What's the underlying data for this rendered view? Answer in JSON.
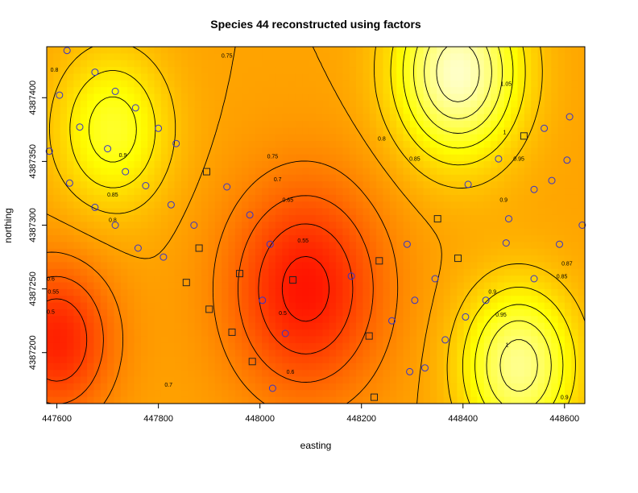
{
  "chart_data": {
    "type": "heatmap",
    "title": "Species 44 reconstructed using factors",
    "xlabel": "easting",
    "ylabel": "northing",
    "xlim": [
      447580,
      448640
    ],
    "ylim": [
      4387160,
      4387440
    ],
    "x_ticks": [
      447600,
      447800,
      448000,
      448200,
      448400,
      448600
    ],
    "y_ticks": [
      4387200,
      4387250,
      4387300,
      4387350,
      4387400
    ],
    "x_tick_labels": [
      "447600",
      "447800",
      "448000",
      "448200",
      "448400",
      "448600"
    ],
    "y_tick_labels": [
      "4387200",
      "4387250",
      "4387300",
      "4387350",
      "4387400"
    ],
    "color_scale": {
      "low": "#ff0000",
      "mid": "#ff9900",
      "high": "#ffffcc",
      "min": 0.5,
      "max": 1.1
    },
    "grid": false,
    "field_centers": [
      {
        "x": 448090,
        "y": 4387250,
        "z": 0.53,
        "spread": 150
      },
      {
        "x": 447600,
        "y": 4387210,
        "z": 0.55,
        "spread": 110
      },
      {
        "x": 447710,
        "y": 4387375,
        "z": 0.93,
        "spread": 110
      },
      {
        "x": 448390,
        "y": 4387420,
        "z": 1.09,
        "spread": 120
      },
      {
        "x": 448510,
        "y": 4387190,
        "z": 1.03,
        "spread": 110
      }
    ],
    "field_base": 0.75,
    "contour_levels": [
      0.55,
      0.6,
      0.65,
      0.7,
      0.75,
      0.8,
      0.85,
      0.9,
      0.95,
      1,
      1.05
    ],
    "contour_labels": [
      {
        "text": "0.75",
        "x": 447935,
        "y": 4387433
      },
      {
        "text": "0.8",
        "x": 447595,
        "y": 4387422
      },
      {
        "text": "1.05",
        "x": 448485,
        "y": 4387411
      },
      {
        "text": "0.8",
        "x": 448240,
        "y": 4387368
      },
      {
        "text": "1",
        "x": 448482,
        "y": 4387373
      },
      {
        "text": "0.75",
        "x": 448025,
        "y": 4387354
      },
      {
        "text": "0.85",
        "x": 448305,
        "y": 4387352
      },
      {
        "text": "0.9",
        "x": 447730,
        "y": 4387355
      },
      {
        "text": "0.95",
        "x": 448510,
        "y": 4387352
      },
      {
        "text": "0.7",
        "x": 448035,
        "y": 4387336
      },
      {
        "text": "0.85",
        "x": 447710,
        "y": 4387324
      },
      {
        "text": "0.65",
        "x": 448055,
        "y": 4387320
      },
      {
        "text": "0.9",
        "x": 448480,
        "y": 4387320
      },
      {
        "text": "0.8",
        "x": 447710,
        "y": 4387304
      },
      {
        "text": "0.55",
        "x": 448085,
        "y": 4387288
      },
      {
        "text": "0.87",
        "x": 448605,
        "y": 4387270
      },
      {
        "text": "0.6",
        "x": 447588,
        "y": 4387258
      },
      {
        "text": "0.85",
        "x": 448595,
        "y": 4387260
      },
      {
        "text": "0.55",
        "x": 447593,
        "y": 4387248
      },
      {
        "text": "0.9",
        "x": 448458,
        "y": 4387248
      },
      {
        "text": "0.5",
        "x": 448045,
        "y": 4387231
      },
      {
        "text": "0.95",
        "x": 448475,
        "y": 4387230
      },
      {
        "text": "0.5",
        "x": 447588,
        "y": 4387232
      },
      {
        "text": "1",
        "x": 448487,
        "y": 4387206
      },
      {
        "text": "0.6",
        "x": 448060,
        "y": 4387185
      },
      {
        "text": "0.7",
        "x": 447820,
        "y": 4387175
      },
      {
        "text": "0.9",
        "x": 448600,
        "y": 4387165
      }
    ],
    "series": [
      {
        "name": "",
        "marker": "circle",
        "color": "#3333cc",
        "points": [
          [
            447620,
            4387437
          ],
          [
            447605,
            4387402
          ],
          [
            447675,
            4387420
          ],
          [
            447715,
            4387405
          ],
          [
            447755,
            4387392
          ],
          [
            447645,
            4387377
          ],
          [
            447800,
            4387376
          ],
          [
            447700,
            4387360
          ],
          [
            447835,
            4387364
          ],
          [
            447585,
            4387358
          ],
          [
            447735,
            4387342
          ],
          [
            447625,
            4387333
          ],
          [
            447775,
            4387331
          ],
          [
            447675,
            4387314
          ],
          [
            447825,
            4387316
          ],
          [
            447715,
            4387300
          ],
          [
            447870,
            4387300
          ],
          [
            447760,
            4387282
          ],
          [
            447810,
            4387275
          ],
          [
            447935,
            4387330
          ],
          [
            447980,
            4387308
          ],
          [
            448020,
            4387285
          ],
          [
            448005,
            4387241
          ],
          [
            448050,
            4387215
          ],
          [
            448025,
            4387172
          ],
          [
            448180,
            4387260
          ],
          [
            448290,
            4387285
          ],
          [
            448260,
            4387225
          ],
          [
            448305,
            4387241
          ],
          [
            448345,
            4387258
          ],
          [
            448365,
            4387210
          ],
          [
            448295,
            4387185
          ],
          [
            448325,
            4387188
          ],
          [
            448405,
            4387228
          ],
          [
            448445,
            4387241
          ],
          [
            448540,
            4387258
          ],
          [
            448490,
            4387305
          ],
          [
            448540,
            4387328
          ],
          [
            448575,
            4387335
          ],
          [
            448605,
            4387351
          ],
          [
            448635,
            4387300
          ],
          [
            448610,
            4387385
          ],
          [
            448560,
            4387376
          ],
          [
            448470,
            4387352
          ],
          [
            448410,
            4387332
          ],
          [
            448485,
            4387286
          ],
          [
            448590,
            4387285
          ]
        ]
      },
      {
        "name": "",
        "marker": "square",
        "color": "#222222",
        "points": [
          [
            447895,
            4387342
          ],
          [
            447880,
            4387282
          ],
          [
            447855,
            4387255
          ],
          [
            447960,
            4387262
          ],
          [
            448065,
            4387257
          ],
          [
            448235,
            4387272
          ],
          [
            448390,
            4387274
          ],
          [
            448520,
            4387370
          ],
          [
            448350,
            4387305
          ],
          [
            447900,
            4387234
          ],
          [
            447945,
            4387216
          ],
          [
            447985,
            4387193
          ],
          [
            448215,
            4387213
          ],
          [
            448225,
            4387165
          ]
        ]
      }
    ]
  }
}
